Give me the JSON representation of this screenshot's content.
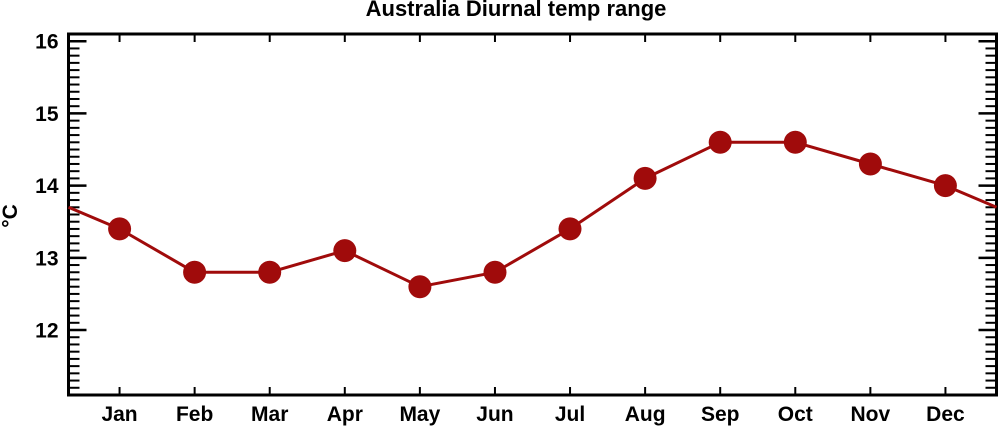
{
  "chart_data": {
    "type": "line",
    "title": "Australia Diurnal temp range",
    "xlabel": "",
    "ylabel": "°C",
    "categories": [
      "Jan",
      "Feb",
      "Mar",
      "Apr",
      "May",
      "Jun",
      "Jul",
      "Aug",
      "Sep",
      "Oct",
      "Nov",
      "Dec"
    ],
    "values": [
      13.4,
      12.8,
      12.8,
      13.1,
      12.6,
      12.8,
      13.4,
      14.1,
      14.6,
      14.6,
      14.3,
      14.0
    ],
    "edge_extension": {
      "note": "line continues past Jan and Dec markers to the plot edges",
      "left_value": 13.7,
      "right_value": 13.7
    },
    "ylim": [
      11.1,
      16.1
    ],
    "xlim_months": [
      0.32,
      12.68
    ],
    "y_major_ticks": [
      12,
      13,
      14,
      15,
      16
    ],
    "y_minor_step": 0.1,
    "grid": false,
    "legend": null,
    "line_color": "#a00b0b",
    "marker_color": "#a00b0b",
    "marker_shape": "circle",
    "axis_color": "#000000",
    "text_color": "#000000",
    "background_color": "#ffffff"
  }
}
